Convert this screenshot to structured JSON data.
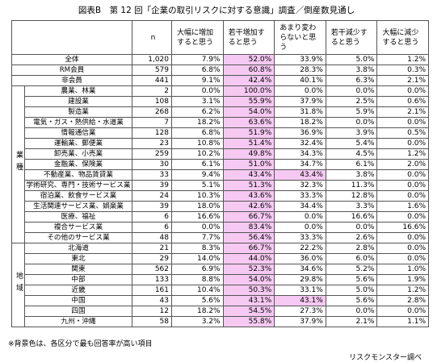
{
  "title": "図表B　第 12 回「企業の取引リスクに対する意識」調査／倒産数見通し",
  "highlight_color": "#f6c9f3",
  "table": {
    "header": [
      "n",
      "大幅に増加すると思う",
      "若干増加すると思う",
      "あまり変わらないと思う",
      "若干減少すると思う",
      "大幅に減少すると思う"
    ],
    "sections": [
      {
        "rows": [
          {
            "label": "全体",
            "cells": [
              "1,020",
              "7.9%",
              "52.0%",
              "33.9%",
              "5.0%",
              "1.2%"
            ]
          },
          {
            "label": "RM会員",
            "cells": [
              "579",
              "6.8%",
              "60.8%",
              "28.3%",
              "3.8%",
              "0.3%"
            ]
          },
          {
            "label": "非会員",
            "cells": [
              "441",
              "9.1%",
              "42.4%",
              "40.1%",
              "6.3%",
              "2.1%"
            ]
          }
        ]
      },
      {
        "label": "業種",
        "rows": [
          {
            "label": "農業、林業",
            "cells": [
              "2",
              "0.0%",
              "100.0%",
              "0.0%",
              "0.0%",
              "0.0%"
            ]
          },
          {
            "label": "建設業",
            "cells": [
              "108",
              "3.1%",
              "55.9%",
              "37.9%",
              "2.5%",
              "0.6%"
            ]
          },
          {
            "label": "製造業",
            "cells": [
              "268",
              "6.2%",
              "54.0%",
              "31.8%",
              "5.9%",
              "2.1%"
            ]
          },
          {
            "label": "電気・ガス・熱供給・水道業",
            "cells": [
              "7",
              "18.2%",
              "63.6%",
              "18.2%",
              "0.0%",
              "0.0%"
            ]
          },
          {
            "label": "情報通信業",
            "cells": [
              "128",
              "6.8%",
              "51.9%",
              "36.9%",
              "3.9%",
              "0.5%"
            ]
          },
          {
            "label": "運輸業、郵便業",
            "cells": [
              "23",
              "10.8%",
              "51.4%",
              "32.4%",
              "5.4%",
              "0.0%"
            ]
          },
          {
            "label": "卸売業、小売業",
            "cells": [
              "259",
              "10.2%",
              "49.8%",
              "34.3%",
              "4.5%",
              "1.2%"
            ]
          },
          {
            "label": "金融業、保険業",
            "cells": [
              "30",
              "6.1%",
              "51.0%",
              "34.7%",
              "6.1%",
              "2.0%"
            ]
          },
          {
            "label": "不動産業、物品賃貸業",
            "cells": [
              "33",
              "9.4%",
              "43.4%",
              "43.4%",
              "3.8%",
              "0.0%"
            ]
          },
          {
            "label": "学術研究、専門・技術サービス業",
            "cells": [
              "39",
              "5.1%",
              "51.3%",
              "32.3%",
              "11.3%",
              "0.0%"
            ]
          },
          {
            "label": "宿泊業、飲食サービス業",
            "cells": [
              "24",
              "10.3%",
              "43.6%",
              "33.3%",
              "12.8%",
              "0.0%"
            ]
          },
          {
            "label": "生活関連サービス業、娯楽業",
            "cells": [
              "39",
              "18.0%",
              "42.6%",
              "34.4%",
              "3.3%",
              "1.6%"
            ]
          },
          {
            "label": "医療、福祉",
            "cells": [
              "6",
              "16.6%",
              "66.7%",
              "0.0%",
              "16.6%",
              "0.0%"
            ]
          },
          {
            "label": "複合サービス業",
            "cells": [
              "6",
              "0.0%",
              "83.4%",
              "0.0%",
              "0.0%",
              "16.6%"
            ]
          },
          {
            "label": "その他のサービス業",
            "cells": [
              "48",
              "7.7%",
              "56.4%",
              "33.3%",
              "2.6%",
              "0.0%"
            ]
          }
        ]
      },
      {
        "label": "地域",
        "rows": [
          {
            "label": "北海道",
            "cells": [
              "21",
              "8.3%",
              "66.7%",
              "22.2%",
              "2.8%",
              "0.0%"
            ]
          },
          {
            "label": "東北",
            "cells": [
              "29",
              "14.0%",
              "44.0%",
              "36.0%",
              "6.0%",
              "0.0%"
            ]
          },
          {
            "label": "関東",
            "cells": [
              "562",
              "6.9%",
              "52.3%",
              "34.6%",
              "5.2%",
              "1.0%"
            ]
          },
          {
            "label": "中部",
            "cells": [
              "133",
              "8.8%",
              "54.0%",
              "29.8%",
              "5.6%",
              "1.9%"
            ]
          },
          {
            "label": "近畿",
            "cells": [
              "161",
              "10.4%",
              "50.3%",
              "33.1%",
              "5.0%",
              "1.2%"
            ]
          },
          {
            "label": "中国",
            "cells": [
              "43",
              "5.6%",
              "43.1%",
              "43.1%",
              "5.6%",
              "2.8%"
            ]
          },
          {
            "label": "四国",
            "cells": [
              "12",
              "18.2%",
              "54.5%",
              "27.3%",
              "0.0%",
              "0.0%"
            ]
          },
          {
            "label": "九州・沖縄",
            "cells": [
              "58",
              "3.2%",
              "55.8%",
              "37.9%",
              "2.1%",
              "1.1%"
            ]
          }
        ]
      }
    ]
  },
  "footnote": "※背景色は、各区分で最も回答率が高い項目",
  "source": "リスクモンスター調べ"
}
